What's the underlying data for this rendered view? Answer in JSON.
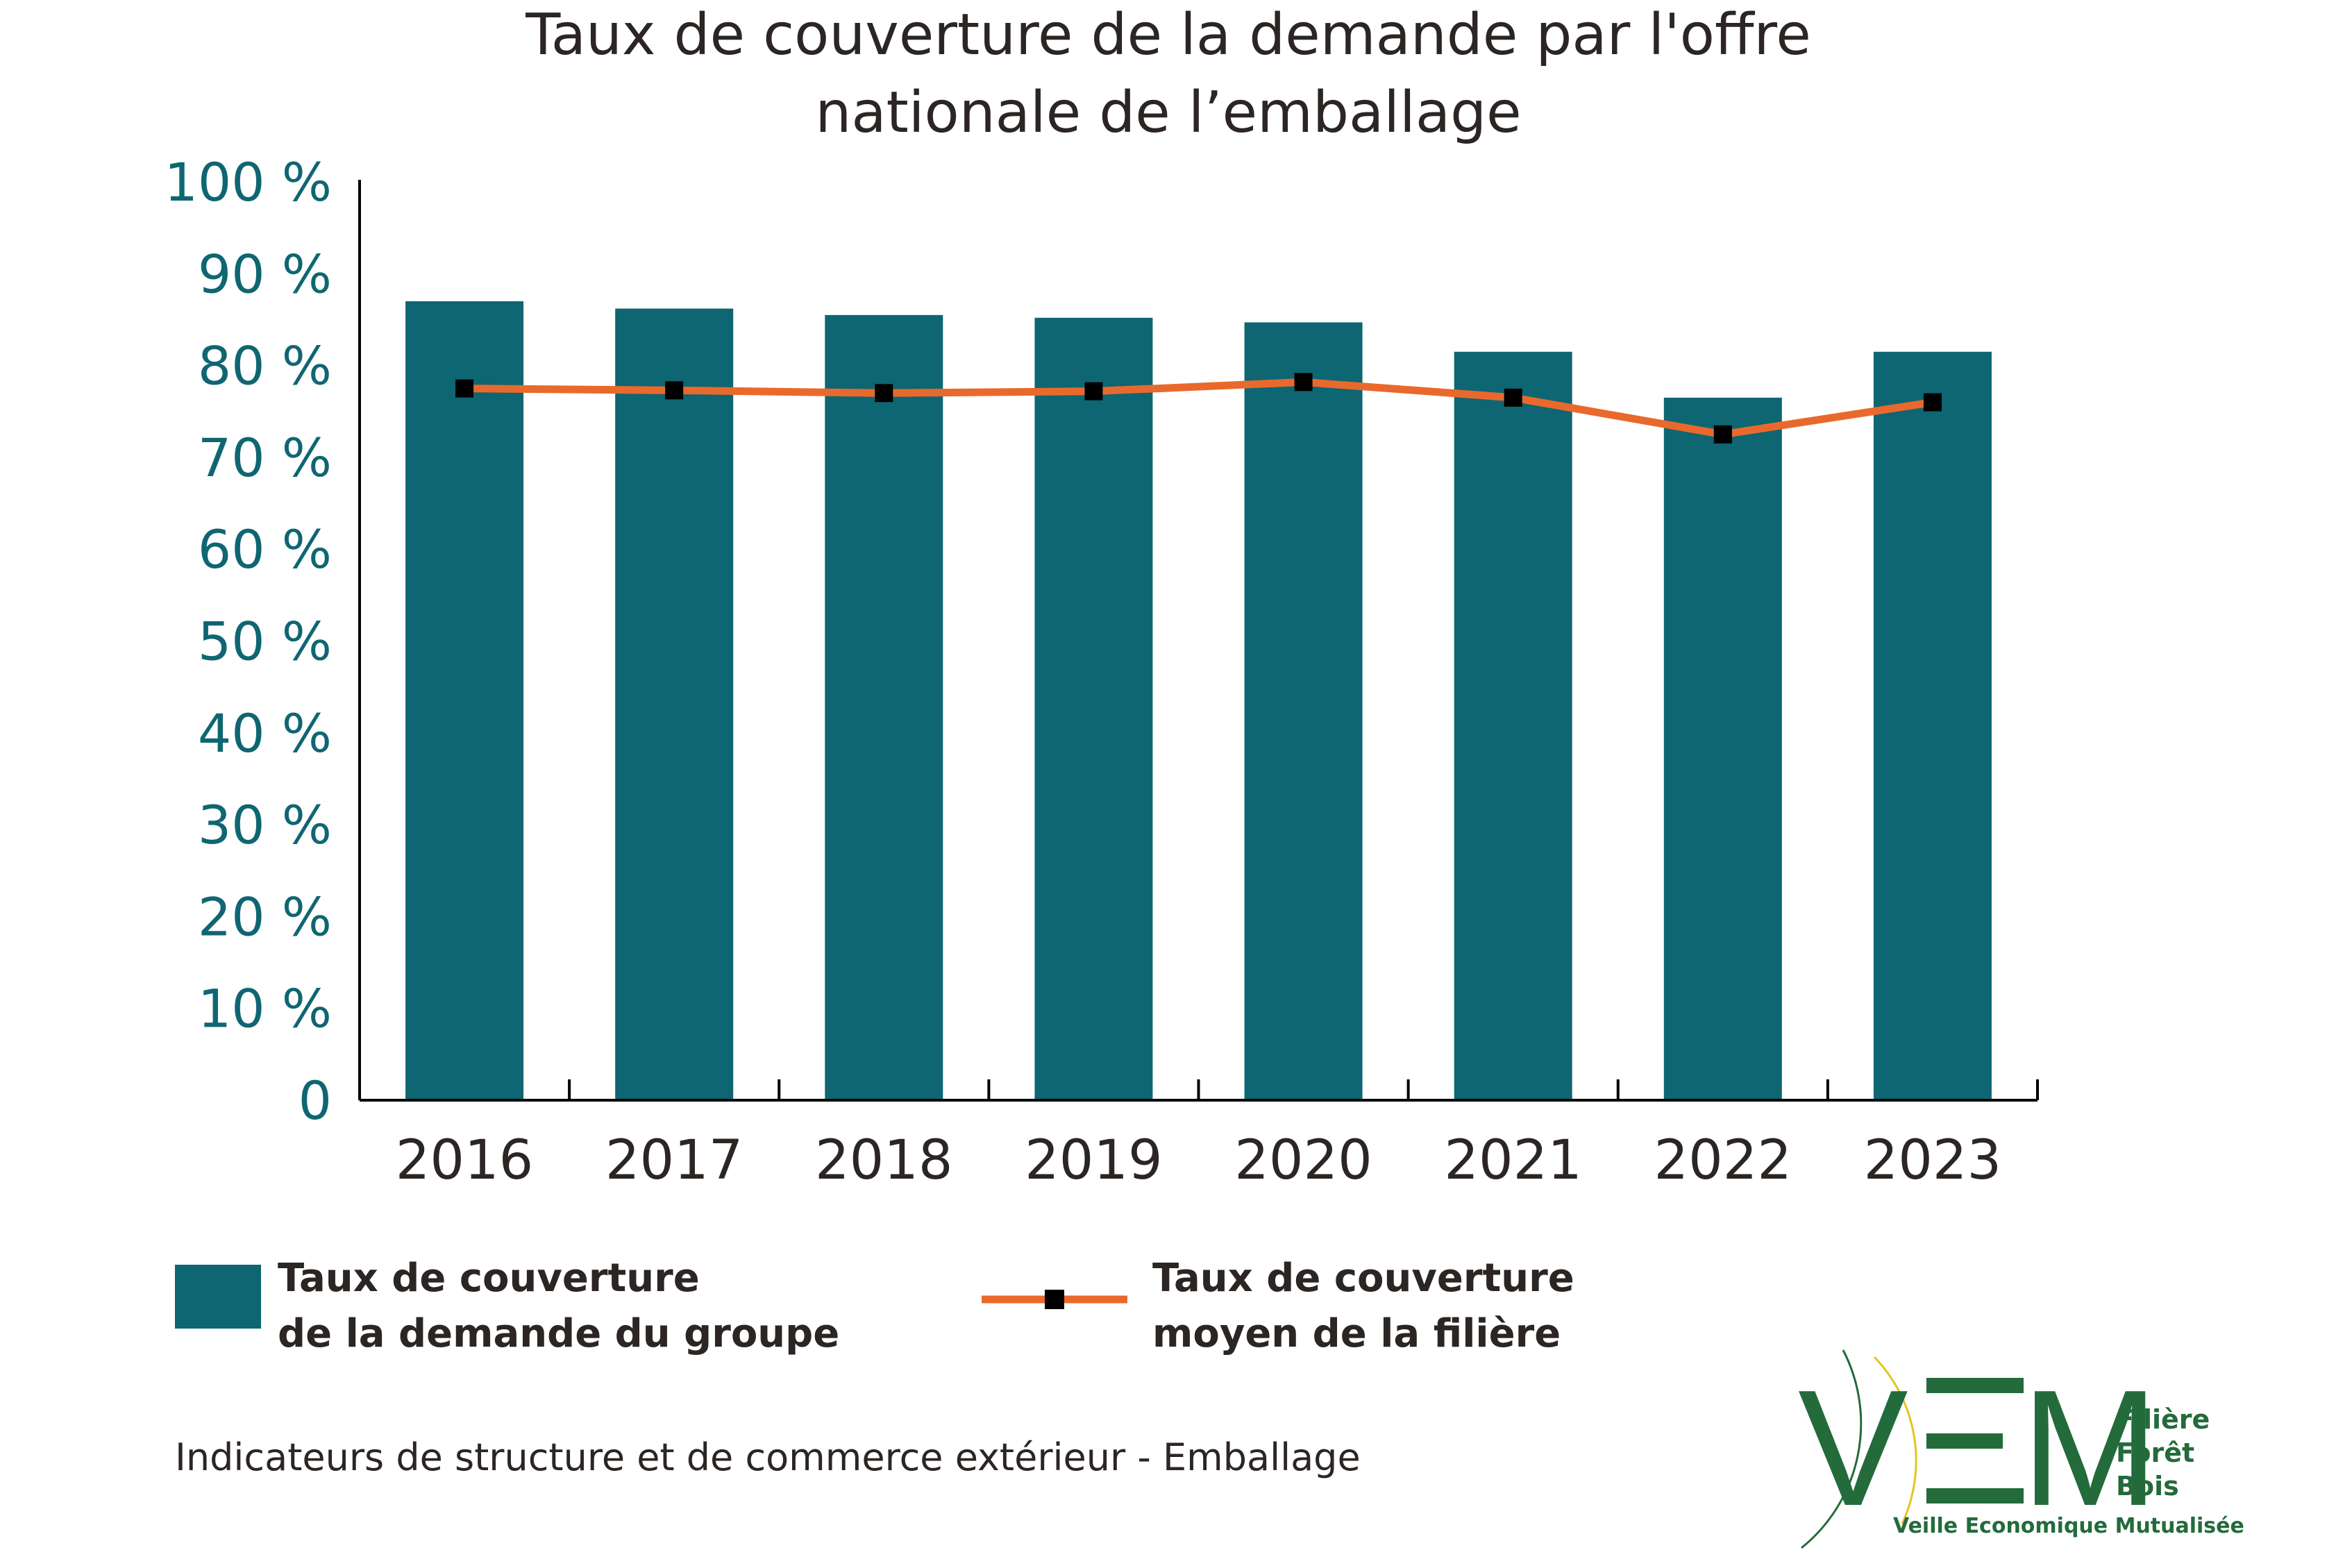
{
  "chart_data": {
    "type": "bar",
    "title_lines": [
      "Taux de couverture de la demande par l'offre",
      "nationale de l’emballage"
    ],
    "categories": [
      "2016",
      "2017",
      "2018",
      "2019",
      "2020",
      "2021",
      "2022",
      "2023"
    ],
    "series": [
      {
        "name": "Taux de couverture de la demande du groupe",
        "legend_lines": [
          "Taux de couverture",
          "de la demande du groupe"
        ],
        "type": "bar",
        "color": "#0d6672",
        "values": [
          87,
          86.2,
          85.5,
          85.2,
          84.7,
          81.5,
          76.5,
          81.5
        ]
      },
      {
        "name": "Taux de couverture moyen de la filière",
        "legend_lines": [
          "Taux de couverture",
          "moyen de la filière"
        ],
        "type": "line",
        "color": "#e9692c",
        "marker_color": "#000000",
        "values": [
          77.5,
          77.3,
          77.0,
          77.2,
          78.2,
          76.5,
          72.5,
          76.0
        ]
      }
    ],
    "yticks": [
      "0",
      "10 %",
      "20 %",
      "30 %",
      "40 %",
      "50 %",
      "60 %",
      "70 %",
      "80 %",
      "90 %",
      "100 %"
    ],
    "ylim": [
      0,
      100
    ],
    "grid": false,
    "legend_position": "bottom"
  },
  "footer": "Indicateurs de structure et de commerce extérieur - Emballage",
  "logo": {
    "letters": "VEM",
    "line1": "Filière",
    "line2": "Forêt",
    "line3": "Bois",
    "tagline": "Veille Economique Mutualisée",
    "color": "#236b3b",
    "accent_color": "#e3c520"
  }
}
